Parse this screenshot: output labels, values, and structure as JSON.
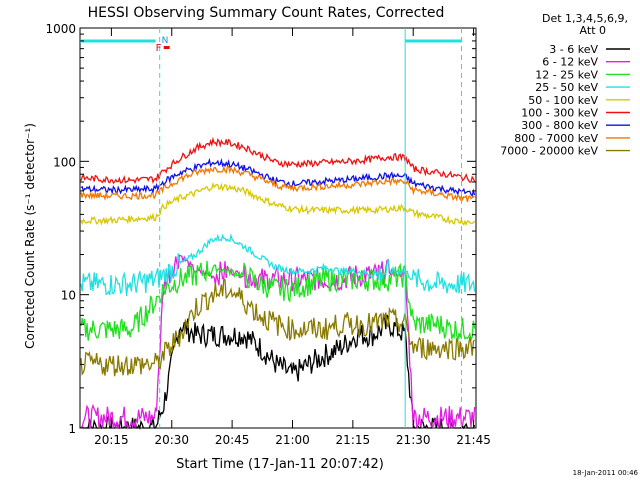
{
  "chart_data": {
    "type": "line",
    "title": "HESSI Observing Summary Count Rates, Corrected",
    "xlabel": "Start Time (17-Jan-11 20:07:42)",
    "ylabel": "Corrected Count Rate (s⁻¹ detector⁻¹)",
    "y_scale": "log",
    "ylim": [
      1,
      1000
    ],
    "xlim_minutes": [
      20.12,
      21.76
    ],
    "x_ticks": [
      "20:15",
      "20:30",
      "20:45",
      "21:00",
      "21:15",
      "21:30",
      "21:45"
    ],
    "y_ticks": [
      "1",
      "10",
      "100",
      "1000"
    ],
    "legend_title": [
      "Det 1,3,4,5,6,9,",
      "Att 0"
    ],
    "legend_position": "right",
    "timestamp": "18-Jan-2011 00:46",
    "flag_labels": [
      "N",
      "F"
    ],
    "x": [
      "20:08",
      "20:14",
      "20:20",
      "20:26",
      "20:28",
      "20:32",
      "20:36",
      "20:40",
      "20:44",
      "20:48",
      "20:52",
      "20:56",
      "21:00",
      "21:04",
      "21:08",
      "21:12",
      "21:16",
      "21:20",
      "21:24",
      "21:28",
      "21:30",
      "21:36",
      "21:40",
      "21:44"
    ],
    "series": [
      {
        "name": "3 - 6 keV",
        "color": "#000000",
        "values": [
          1,
          1,
          1,
          1,
          1.5,
          6,
          5,
          5,
          5,
          5,
          4,
          3,
          2.5,
          3,
          3.5,
          4,
          5,
          5,
          6,
          5,
          1,
          1,
          1,
          1
        ]
      },
      {
        "name": "6 - 12 keV",
        "color": "#e020e0",
        "values": [
          1.2,
          1.2,
          1.2,
          1.2,
          12,
          20,
          15,
          14,
          15,
          14,
          13,
          13,
          13,
          13,
          13,
          13,
          14,
          14,
          15,
          14,
          1.2,
          1.2,
          1.2,
          1.2
        ]
      },
      {
        "name": "12 - 25 keV",
        "color": "#20e020",
        "values": [
          5.5,
          5.5,
          5.5,
          9,
          11,
          13,
          14,
          16,
          15,
          14,
          12,
          11,
          11,
          12,
          13,
          13,
          13,
          13,
          13,
          14,
          6,
          6,
          5.5,
          5.5
        ]
      },
      {
        "name": "25 - 50 keV",
        "color": "#20e0e0",
        "values": [
          12,
          12,
          12,
          13,
          14,
          17,
          20,
          26,
          27,
          23,
          19,
          16,
          15,
          15,
          16,
          15,
          15,
          14,
          15,
          15,
          13,
          12,
          12,
          12
        ]
      },
      {
        "name": "50 - 100 keV",
        "color": "#d8c800",
        "values": [
          36,
          36,
          37,
          38,
          46,
          53,
          58,
          65,
          64,
          60,
          53,
          47,
          44,
          43,
          43,
          43,
          43,
          43,
          44,
          45,
          41,
          38,
          36,
          35
        ]
      },
      {
        "name": "100 - 300 keV",
        "color": "#f01010",
        "values": [
          75,
          73,
          72,
          74,
          85,
          105,
          125,
          140,
          138,
          128,
          112,
          98,
          95,
          96,
          98,
          99,
          101,
          104,
          108,
          107,
          88,
          82,
          78,
          74
        ]
      },
      {
        "name": "300 - 800 keV",
        "color": "#1010e8",
        "values": [
          62,
          61,
          61,
          62,
          70,
          82,
          90,
          98,
          96,
          89,
          80,
          71,
          68,
          69,
          71,
          72,
          74,
          76,
          78,
          77,
          68,
          63,
          60,
          58
        ]
      },
      {
        "name": "800 - 7000 keV",
        "color": "#f07800",
        "values": [
          56,
          55,
          55,
          56,
          62,
          74,
          82,
          88,
          87,
          82,
          74,
          66,
          63,
          64,
          65,
          66,
          67,
          69,
          71,
          70,
          61,
          57,
          54,
          52
        ]
      },
      {
        "name": "7000 - 20000 keV",
        "color": "#8a7a00",
        "values": [
          3,
          3,
          3,
          3,
          3.5,
          5,
          8,
          10,
          11,
          9,
          7,
          6,
          5.5,
          5.5,
          5.5,
          6,
          6,
          6,
          6.5,
          6,
          4,
          4,
          4,
          4
        ]
      }
    ],
    "grid": false
  }
}
